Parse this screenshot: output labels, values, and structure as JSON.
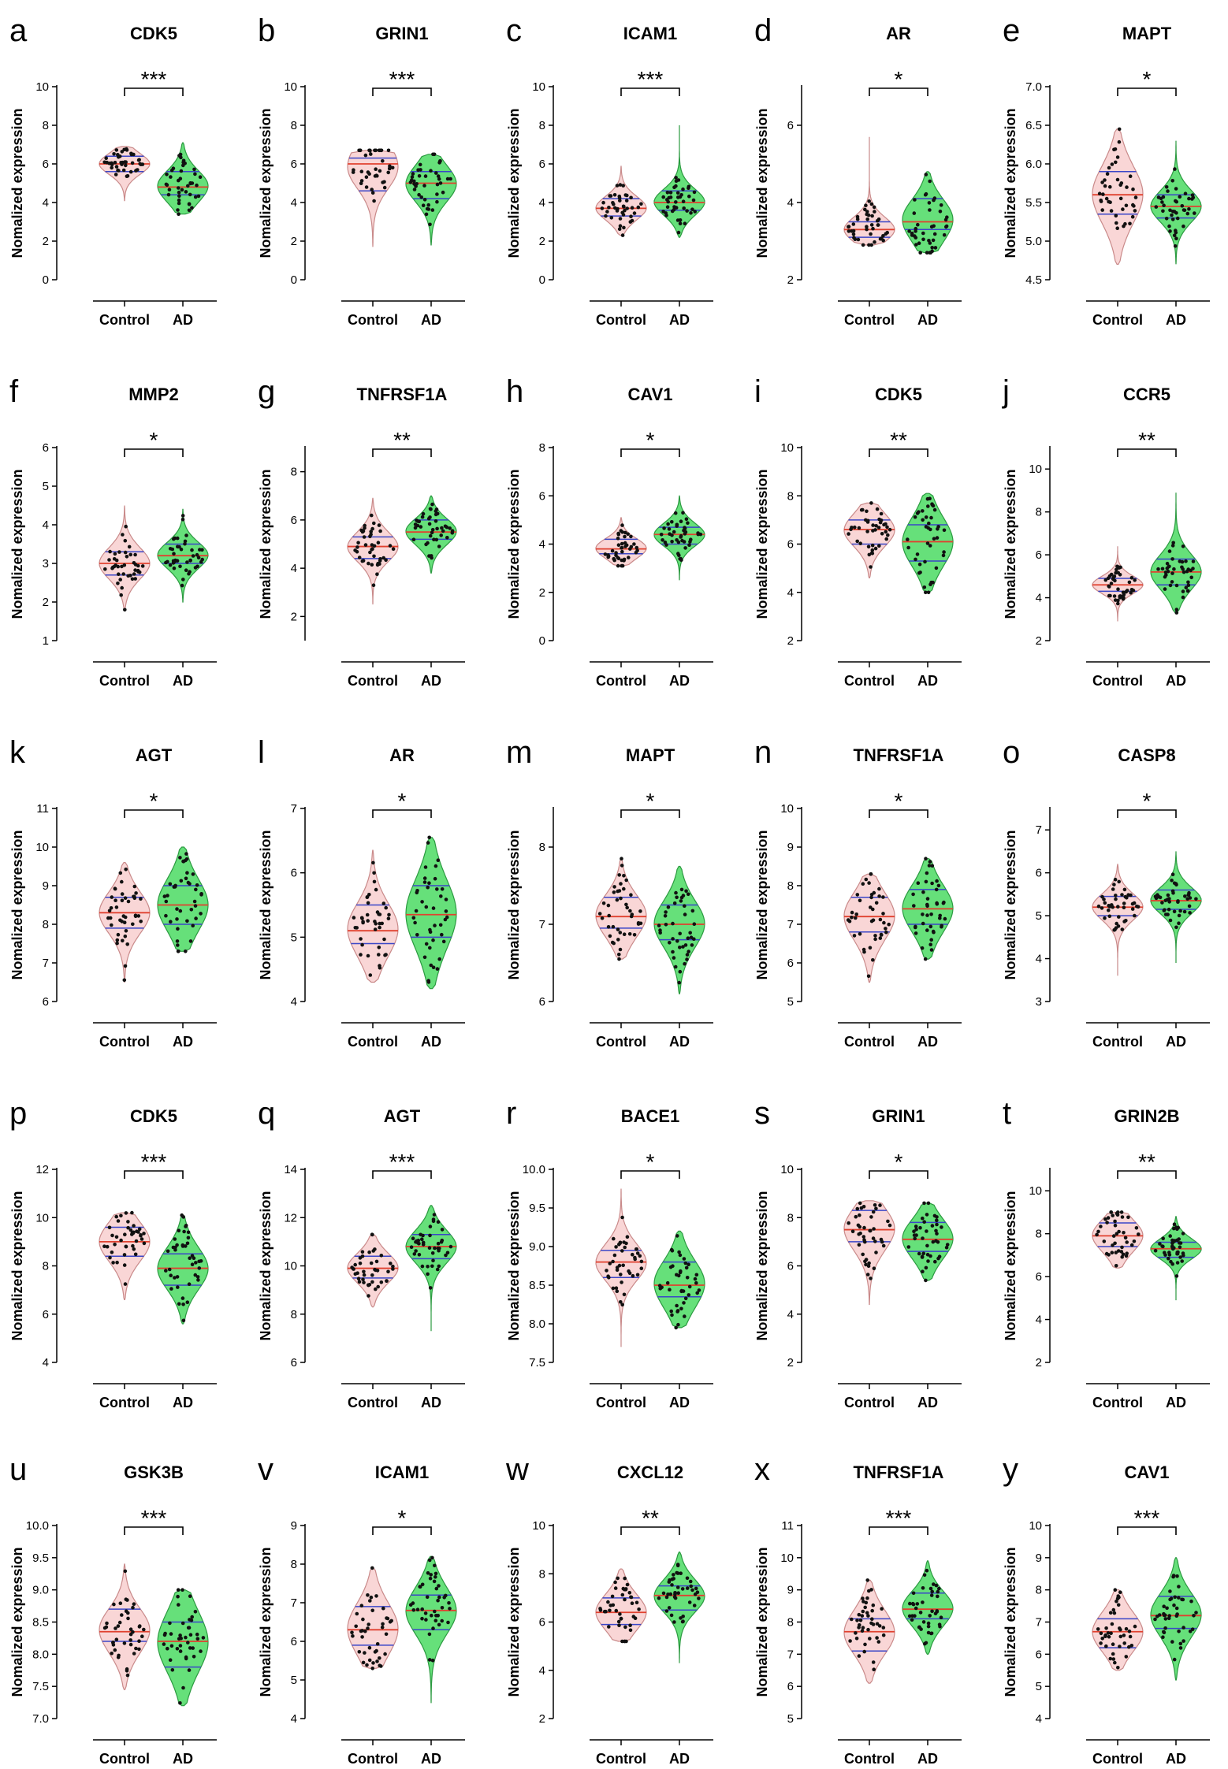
{
  "figure": {
    "groups": [
      "Control",
      "AD"
    ],
    "ylabel": "Nomalized expression",
    "colors": {
      "control_fill": "#f9d6d6",
      "control_edge": "#c98a8a",
      "ad_fill": "#66e07a",
      "ad_edge": "#2b9a40",
      "median": "#e0412f",
      "quartile": "#3a46c8",
      "point": "#111111"
    }
  },
  "chart_data": [
    {
      "panel": "a",
      "type": "violin",
      "title": "CDK5",
      "ylim": [
        0,
        10
      ],
      "ticks": [
        0,
        2,
        4,
        6,
        8,
        10
      ],
      "significance": "***",
      "series": [
        {
          "name": "Control",
          "median": 6.0,
          "q1": 5.6,
          "q3": 6.4,
          "min": 4.1,
          "max": 6.9
        },
        {
          "name": "AD",
          "median": 4.8,
          "q1": 4.4,
          "q3": 5.6,
          "min": 3.4,
          "max": 7.1
        }
      ]
    },
    {
      "panel": "b",
      "type": "violin",
      "title": "GRIN1",
      "ylim": [
        0,
        10
      ],
      "ticks": [
        0,
        2,
        4,
        6,
        8,
        10
      ],
      "significance": "***",
      "series": [
        {
          "name": "Control",
          "median": 6.0,
          "q1": 4.6,
          "q3": 6.3,
          "min": 1.7,
          "max": 6.7
        },
        {
          "name": "AD",
          "median": 5.0,
          "q1": 4.2,
          "q3": 5.6,
          "min": 1.8,
          "max": 6.5
        }
      ]
    },
    {
      "panel": "c",
      "type": "violin",
      "title": "ICAM1",
      "ylim": [
        0,
        10
      ],
      "ticks": [
        0,
        2,
        4,
        6,
        8,
        10
      ],
      "significance": "***",
      "series": [
        {
          "name": "Control",
          "median": 3.7,
          "q1": 3.3,
          "q3": 4.2,
          "min": 2.3,
          "max": 5.9
        },
        {
          "name": "AD",
          "median": 4.0,
          "q1": 3.6,
          "q3": 4.6,
          "min": 2.2,
          "max": 8.0
        }
      ]
    },
    {
      "panel": "d",
      "type": "violin",
      "title": "AR",
      "ylim": [
        2,
        7
      ],
      "ticks": [
        2,
        4,
        6
      ],
      "significance": "*",
      "series": [
        {
          "name": "Control",
          "median": 3.3,
          "q1": 3.1,
          "q3": 3.5,
          "min": 2.9,
          "max": 5.7
        },
        {
          "name": "AD",
          "median": 3.5,
          "q1": 3.3,
          "q3": 4.1,
          "min": 2.7,
          "max": 4.8
        }
      ]
    },
    {
      "panel": "e",
      "type": "violin",
      "title": "MAPT",
      "ylim": [
        4.5,
        7.0
      ],
      "ticks": [
        "4.5",
        "5.0",
        "5.5",
        "6.0",
        "6.5",
        "7.0"
      ],
      "significance": "*",
      "series": [
        {
          "name": "Control",
          "median": 5.6,
          "q1": 5.35,
          "q3": 5.9,
          "min": 4.7,
          "max": 6.45
        },
        {
          "name": "AD",
          "median": 5.45,
          "q1": 5.3,
          "q3": 5.6,
          "min": 4.7,
          "max": 6.3
        }
      ]
    },
    {
      "panel": "f",
      "type": "violin",
      "title": "MMP2",
      "ylim": [
        1,
        6
      ],
      "ticks": [
        1,
        2,
        3,
        4,
        5,
        6
      ],
      "significance": "*",
      "series": [
        {
          "name": "Control",
          "median": 3.0,
          "q1": 2.7,
          "q3": 3.3,
          "min": 1.8,
          "max": 4.5
        },
        {
          "name": "AD",
          "median": 3.2,
          "q1": 3.0,
          "q3": 3.5,
          "min": 2.0,
          "max": 4.4
        }
      ]
    },
    {
      "panel": "g",
      "type": "violin",
      "title": "TNFRSF1A",
      "ylim": [
        1,
        9
      ],
      "ticks": [
        2,
        4,
        6,
        8
      ],
      "significance": "**",
      "series": [
        {
          "name": "Control",
          "median": 4.9,
          "q1": 4.4,
          "q3": 5.3,
          "min": 2.5,
          "max": 6.9
        },
        {
          "name": "AD",
          "median": 5.5,
          "q1": 5.2,
          "q3": 6.0,
          "min": 3.8,
          "max": 7.0
        }
      ]
    },
    {
      "panel": "h",
      "type": "violin",
      "title": "CAV1",
      "ylim": [
        0,
        8
      ],
      "ticks": [
        0,
        2,
        4,
        6,
        8
      ],
      "significance": "*",
      "series": [
        {
          "name": "Control",
          "median": 3.8,
          "q1": 3.6,
          "q3": 4.2,
          "min": 3.1,
          "max": 5.1
        },
        {
          "name": "AD",
          "median": 4.4,
          "q1": 4.0,
          "q3": 4.7,
          "min": 2.5,
          "max": 6.0
        }
      ]
    },
    {
      "panel": "i",
      "type": "violin",
      "title": "CDK5",
      "ylim": [
        2,
        10
      ],
      "ticks": [
        2,
        4,
        6,
        8,
        10
      ],
      "significance": "**",
      "series": [
        {
          "name": "Control",
          "median": 6.6,
          "q1": 6.0,
          "q3": 7.0,
          "min": 4.6,
          "max": 7.7
        },
        {
          "name": "AD",
          "median": 6.1,
          "q1": 5.3,
          "q3": 6.8,
          "min": 4.0,
          "max": 8.1
        }
      ]
    },
    {
      "panel": "j",
      "type": "violin",
      "title": "CCR5",
      "ylim": [
        2,
        11
      ],
      "ticks": [
        2,
        4,
        6,
        8,
        10
      ],
      "significance": "**",
      "series": [
        {
          "name": "Control",
          "median": 4.6,
          "q1": 4.3,
          "q3": 4.9,
          "min": 2.9,
          "max": 6.4
        },
        {
          "name": "AD",
          "median": 5.2,
          "q1": 4.6,
          "q3": 5.8,
          "min": 3.3,
          "max": 8.9
        }
      ]
    },
    {
      "panel": "k",
      "type": "violin",
      "title": "AGT",
      "ylim": [
        6,
        11
      ],
      "ticks": [
        6,
        7,
        8,
        9,
        10,
        11
      ],
      "significance": "*",
      "series": [
        {
          "name": "Control",
          "median": 8.3,
          "q1": 7.9,
          "q3": 8.7,
          "min": 6.5,
          "max": 9.6
        },
        {
          "name": "AD",
          "median": 8.5,
          "q1": 8.0,
          "q3": 9.0,
          "min": 7.3,
          "max": 10.0
        }
      ]
    },
    {
      "panel": "l",
      "type": "violin",
      "title": "AR",
      "ylim": [
        4,
        7
      ],
      "ticks": [
        4,
        5,
        6,
        7
      ],
      "significance": "*",
      "series": [
        {
          "name": "Control",
          "median": 5.1,
          "q1": 4.9,
          "q3": 5.5,
          "min": 4.3,
          "max": 6.35
        },
        {
          "name": "AD",
          "median": 5.35,
          "q1": 5.0,
          "q3": 5.8,
          "min": 4.2,
          "max": 6.55
        }
      ]
    },
    {
      "panel": "m",
      "type": "violin",
      "title": "MAPT",
      "ylim": [
        6,
        8.5
      ],
      "ticks": [
        6,
        7,
        8
      ],
      "significance": "*",
      "series": [
        {
          "name": "Control",
          "median": 7.1,
          "q1": 6.95,
          "q3": 7.35,
          "min": 6.55,
          "max": 7.85
        },
        {
          "name": "AD",
          "median": 7.0,
          "q1": 6.8,
          "q3": 7.25,
          "min": 6.1,
          "max": 7.75
        }
      ]
    },
    {
      "panel": "n",
      "type": "violin",
      "title": "TNFRSF1A",
      "ylim": [
        5,
        10
      ],
      "ticks": [
        5,
        6,
        7,
        8,
        9,
        10
      ],
      "significance": "*",
      "series": [
        {
          "name": "Control",
          "median": 7.2,
          "q1": 6.8,
          "q3": 7.7,
          "min": 5.5,
          "max": 8.3
        },
        {
          "name": "AD",
          "median": 7.4,
          "q1": 7.0,
          "q3": 7.9,
          "min": 6.1,
          "max": 8.7
        }
      ]
    },
    {
      "panel": "o",
      "type": "violin",
      "title": "CASP8",
      "ylim": [
        3,
        7.5
      ],
      "ticks": [
        3,
        4,
        5,
        6,
        7
      ],
      "significance": "*",
      "series": [
        {
          "name": "Control",
          "median": 5.2,
          "q1": 5.0,
          "q3": 5.45,
          "min": 3.6,
          "max": 6.2
        },
        {
          "name": "AD",
          "median": 5.35,
          "q1": 5.15,
          "q3": 5.6,
          "min": 3.9,
          "max": 6.5
        }
      ]
    },
    {
      "panel": "p",
      "type": "violin",
      "title": "CDK5",
      "ylim": [
        4,
        12
      ],
      "ticks": [
        4,
        6,
        8,
        10,
        12
      ],
      "significance": "***",
      "series": [
        {
          "name": "Control",
          "median": 9.0,
          "q1": 8.4,
          "q3": 9.6,
          "min": 6.6,
          "max": 10.2
        },
        {
          "name": "AD",
          "median": 7.9,
          "q1": 7.2,
          "q3": 8.5,
          "min": 5.6,
          "max": 10.1
        }
      ]
    },
    {
      "panel": "q",
      "type": "violin",
      "title": "AGT",
      "ylim": [
        6,
        14
      ],
      "ticks": [
        6,
        8,
        10,
        12,
        14
      ],
      "significance": "***",
      "series": [
        {
          "name": "Control",
          "median": 9.9,
          "q1": 9.5,
          "q3": 10.4,
          "min": 8.3,
          "max": 11.3
        },
        {
          "name": "AD",
          "median": 10.8,
          "q1": 10.3,
          "q3": 11.3,
          "min": 7.3,
          "max": 12.5
        }
      ]
    },
    {
      "panel": "r",
      "type": "violin",
      "title": "BACE1",
      "ylim": [
        7.5,
        10
      ],
      "ticks": [
        "7.5",
        "8.0",
        "8.5",
        "9.0",
        "9.5",
        "10.0"
      ],
      "significance": "*",
      "series": [
        {
          "name": "Control",
          "median": 8.8,
          "q1": 8.6,
          "q3": 8.95,
          "min": 7.7,
          "max": 9.75
        },
        {
          "name": "AD",
          "median": 8.5,
          "q1": 8.35,
          "q3": 8.8,
          "min": 7.95,
          "max": 9.2
        }
      ]
    },
    {
      "panel": "s",
      "type": "violin",
      "title": "GRIN1",
      "ylim": [
        2,
        10
      ],
      "ticks": [
        2,
        4,
        6,
        8,
        10
      ],
      "significance": "*",
      "series": [
        {
          "name": "Control",
          "median": 7.5,
          "q1": 7.0,
          "q3": 8.3,
          "min": 4.4,
          "max": 8.7
        },
        {
          "name": "AD",
          "median": 7.1,
          "q1": 6.6,
          "q3": 7.8,
          "min": 5.4,
          "max": 8.6
        }
      ]
    },
    {
      "panel": "t",
      "type": "violin",
      "title": "GRIN2B",
      "ylim": [
        2,
        11
      ],
      "ticks": [
        2,
        4,
        6,
        8,
        10
      ],
      "significance": "**",
      "series": [
        {
          "name": "Control",
          "median": 7.9,
          "q1": 7.4,
          "q3": 8.5,
          "min": 6.4,
          "max": 9.0
        },
        {
          "name": "AD",
          "median": 7.3,
          "q1": 6.9,
          "q3": 7.6,
          "min": 4.9,
          "max": 8.8
        }
      ]
    },
    {
      "panel": "u",
      "type": "violin",
      "title": "GSK3B",
      "ylim": [
        7,
        10
      ],
      "ticks": [
        "7.0",
        "7.5",
        "8.0",
        "8.5",
        "9.0",
        "9.5",
        "10.0"
      ],
      "significance": "***",
      "series": [
        {
          "name": "Control",
          "median": 8.35,
          "q1": 8.2,
          "q3": 8.7,
          "min": 7.45,
          "max": 9.4
        },
        {
          "name": "AD",
          "median": 8.2,
          "q1": 7.8,
          "q3": 8.5,
          "min": 7.2,
          "max": 9.0
        }
      ]
    },
    {
      "panel": "v",
      "type": "violin",
      "title": "ICAM1",
      "ylim": [
        4,
        9
      ],
      "ticks": [
        4,
        5,
        6,
        7,
        8,
        9
      ],
      "significance": "*",
      "series": [
        {
          "name": "Control",
          "median": 6.3,
          "q1": 5.9,
          "q3": 6.9,
          "min": 5.3,
          "max": 7.9
        },
        {
          "name": "AD",
          "median": 6.8,
          "q1": 6.3,
          "q3": 7.2,
          "min": 4.4,
          "max": 8.2
        }
      ]
    },
    {
      "panel": "w",
      "type": "violin",
      "title": "CXCL12",
      "ylim": [
        2,
        10
      ],
      "ticks": [
        2,
        4,
        6,
        8,
        10
      ],
      "significance": "**",
      "series": [
        {
          "name": "Control",
          "median": 6.4,
          "q1": 5.9,
          "q3": 7.0,
          "min": 5.2,
          "max": 8.2
        },
        {
          "name": "AD",
          "median": 7.1,
          "q1": 6.5,
          "q3": 7.5,
          "min": 4.3,
          "max": 8.9
        }
      ]
    },
    {
      "panel": "x",
      "type": "violin",
      "title": "TNFRSF1A",
      "ylim": [
        5,
        11
      ],
      "ticks": [
        5,
        6,
        7,
        8,
        9,
        10,
        11
      ],
      "significance": "***",
      "series": [
        {
          "name": "Control",
          "median": 7.7,
          "q1": 7.1,
          "q3": 8.1,
          "min": 6.1,
          "max": 9.3
        },
        {
          "name": "AD",
          "median": 8.4,
          "q1": 8.1,
          "q3": 8.9,
          "min": 7.0,
          "max": 9.9
        }
      ]
    },
    {
      "panel": "y",
      "type": "violin",
      "title": "CAV1",
      "ylim": [
        4,
        10
      ],
      "ticks": [
        4,
        5,
        6,
        7,
        8,
        9,
        10
      ],
      "significance": "***",
      "series": [
        {
          "name": "Control",
          "median": 6.7,
          "q1": 6.2,
          "q3": 7.1,
          "min": 5.5,
          "max": 8.0
        },
        {
          "name": "AD",
          "median": 7.2,
          "q1": 6.8,
          "q3": 7.8,
          "min": 5.2,
          "max": 9.0
        }
      ]
    }
  ]
}
